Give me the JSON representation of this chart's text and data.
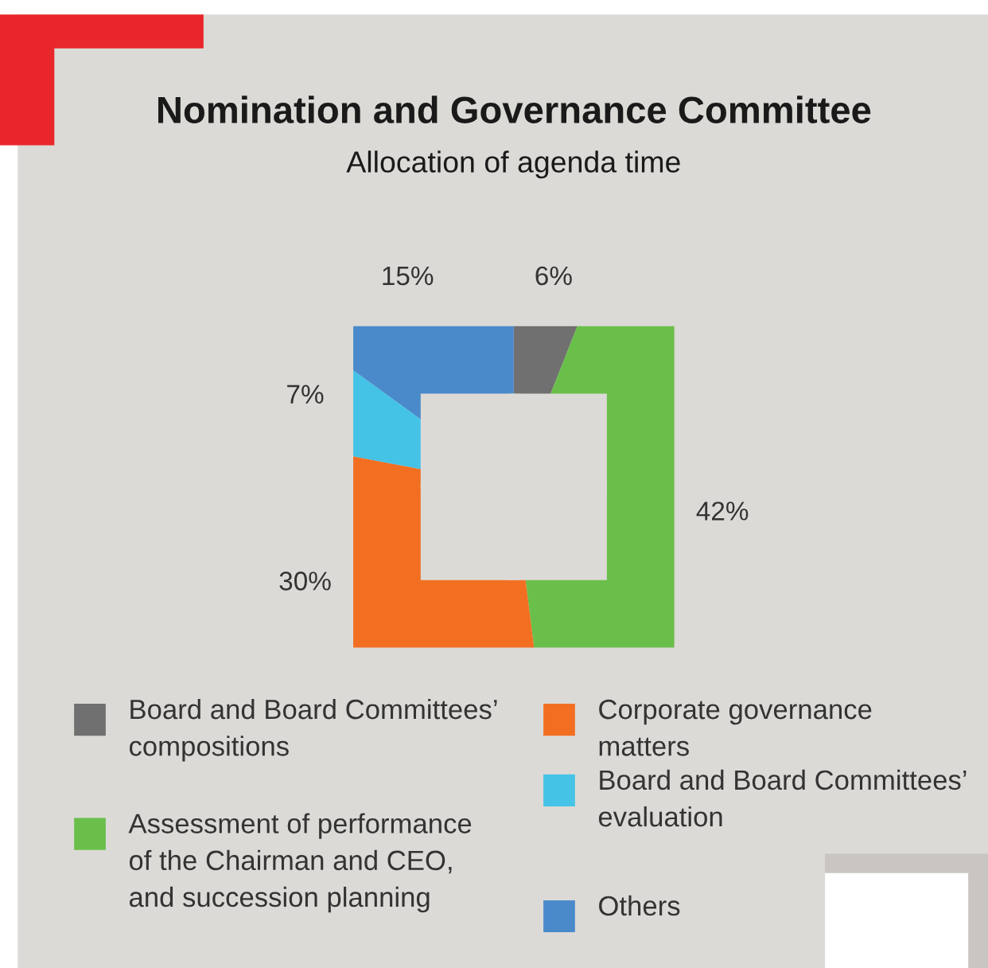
{
  "chart_data": {
    "type": "donut",
    "title": "Nomination and Governance Committee",
    "subtitle": "Allocation of agenda time",
    "categories": [
      "Board and Board Committees’ compositions",
      "Assessment of performance of the Chairman and CEO, and succession planning",
      "Corporate governance matters",
      "Board and Board Committees’ evaluation",
      "Others"
    ],
    "values": [
      6,
      42,
      30,
      7,
      15
    ],
    "colors": [
      "#707070",
      "#6abf4b",
      "#f26f22",
      "#45c3e6",
      "#4a8acb"
    ],
    "value_labels": [
      "6%",
      "42%",
      "30%",
      "7%",
      "15%"
    ],
    "legend": "bottom"
  }
}
